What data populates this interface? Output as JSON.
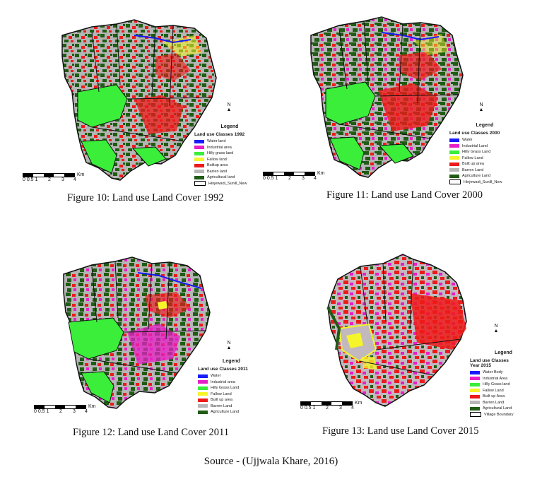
{
  "colors": {
    "water": "#1a1aff",
    "industrial": "#e81fc6",
    "hilly_grass": "#3aee3a",
    "fallow": "#f5f52a",
    "built_up": "#ee1a1a",
    "barren": "#b7b7b7",
    "agriculture": "#1f5c14",
    "boundary": "#ffffff"
  },
  "figures": [
    {
      "caption": "Figure 10: Land use Land Cover 1992",
      "legend_title": "Legend",
      "legend_subtitle": "Land use Classes 1992",
      "legend_items": [
        "Water land",
        "Industrial area",
        "Hilly grass land",
        "Fallow land",
        "Builtup area",
        "Barren land",
        "Agricultural land",
        "Hinjewadi_Sunill_New"
      ],
      "legend_keys": [
        "water",
        "industrial",
        "hilly_grass",
        "fallow",
        "built_up",
        "barren",
        "agriculture",
        "boundary"
      ],
      "north_label": "N",
      "scale_label": "Km",
      "scale_ticks": [
        "0 0.5 1",
        "2",
        "3",
        "4"
      ]
    },
    {
      "caption": "Figure 11: Land use Land Cover 2000",
      "legend_title": "Legend",
      "legend_subtitle": "Land use Classes 2000",
      "legend_items": [
        "Water",
        "Industrial Land",
        "Hilly Grass Land",
        "Fallow Land",
        "Built up area",
        "Barren Land",
        "Agriculture Land",
        "Hinjewadi_Sunill_New"
      ],
      "legend_keys": [
        "water",
        "industrial",
        "hilly_grass",
        "fallow",
        "built_up",
        "barren",
        "agriculture",
        "boundary"
      ],
      "north_label": "N",
      "scale_label": "Km",
      "scale_ticks": [
        "0 0.5 1",
        "2",
        "3",
        "4"
      ]
    },
    {
      "caption": "Figure 12: Land use Land Cover 2011",
      "legend_title": "Legend",
      "legend_subtitle": "Land use Classes 2011",
      "legend_items": [
        "Water",
        "Industrial area",
        "Hilly Grass Land",
        "Fallow Land",
        "Built up area",
        "Barren Land",
        "Agriculture Land"
      ],
      "legend_keys": [
        "water",
        "industrial",
        "hilly_grass",
        "fallow",
        "built_up",
        "barren",
        "agriculture"
      ],
      "north_label": "N",
      "scale_label": "Km",
      "scale_ticks": [
        "0 0.5 1",
        "2",
        "3",
        "4"
      ]
    },
    {
      "caption": "Figure 13: Land use Land Cover 2015",
      "legend_title": "Legend",
      "legend_subtitle": "Land use Classes\nYear 2015",
      "legend_items": [
        "Water Body",
        "Industrial Area",
        "Hilly Grass land",
        "Fallow Land",
        "Built up Area",
        "Barren Land",
        "Agricultural Land",
        "Village Boundary"
      ],
      "legend_keys": [
        "water",
        "industrial",
        "hilly_grass",
        "fallow",
        "built_up",
        "barren",
        "agriculture",
        "boundary"
      ],
      "north_label": "N",
      "scale_label": "Km",
      "scale_ticks": [
        "0 0.5 1",
        "2",
        "3",
        "4"
      ]
    }
  ],
  "source": "Source - (Ujjwala Khare, 2016)"
}
